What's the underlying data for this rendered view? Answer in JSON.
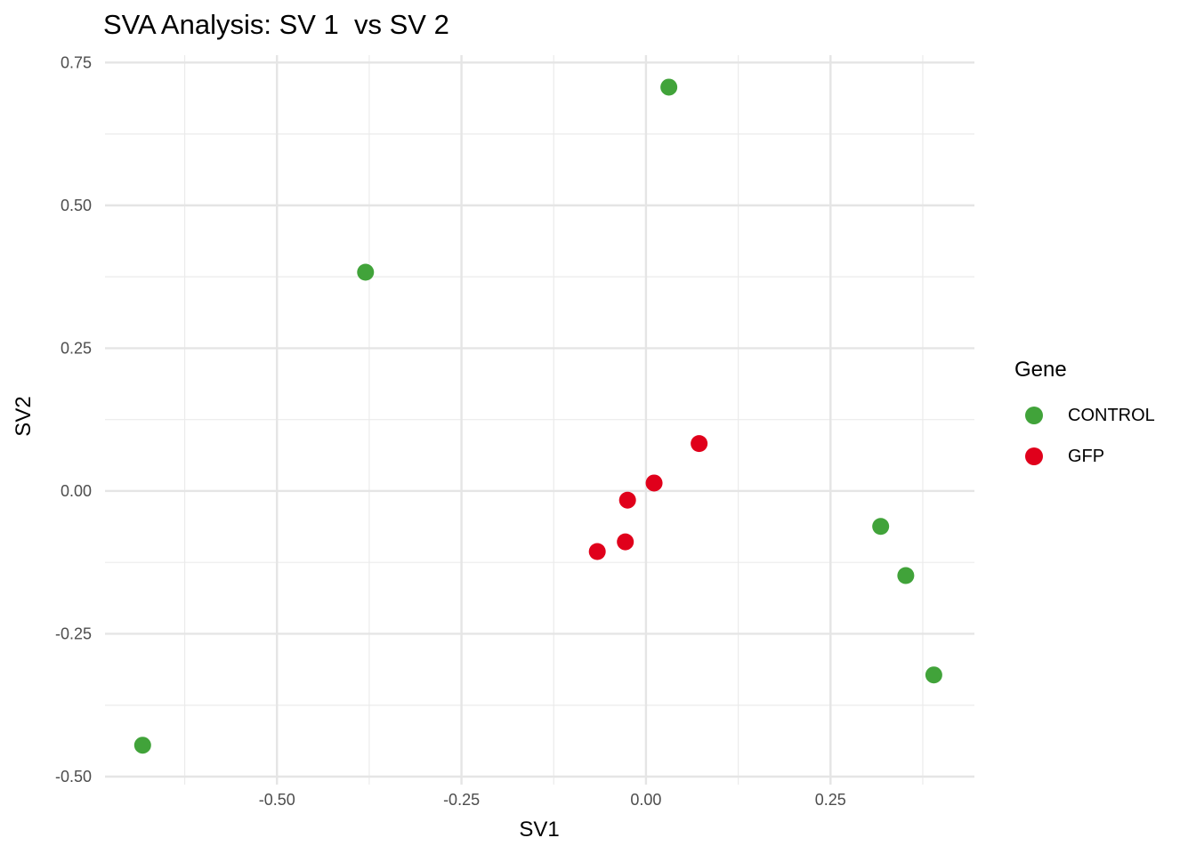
{
  "chart_data": {
    "type": "scatter",
    "title": "SVA Analysis: SV 1  vs SV 2",
    "xlabel": "SV1",
    "ylabel": "SV2",
    "xlim": [
      -0.733,
      0.445
    ],
    "ylim": [
      -0.514,
      0.763
    ],
    "x_ticks": [
      -0.5,
      -0.25,
      0.0,
      0.25
    ],
    "x_tick_labels": [
      "-0.50",
      "-0.25",
      "0.00",
      "0.25"
    ],
    "y_ticks": [
      -0.5,
      -0.25,
      0.0,
      0.25,
      0.5,
      0.75
    ],
    "y_tick_labels": [
      "-0.50",
      "-0.25",
      "0.00",
      "0.25",
      "0.50",
      "0.75"
    ],
    "grid": true,
    "legend": {
      "title": "Gene",
      "placement": "right"
    },
    "series": [
      {
        "name": "CONTROL",
        "color": "#41A33A",
        "points": [
          [
            0.031,
            0.707
          ],
          [
            -0.38,
            0.383
          ],
          [
            0.318,
            -0.062
          ],
          [
            0.352,
            -0.148
          ],
          [
            0.39,
            -0.322
          ],
          [
            -0.682,
            -0.445
          ]
        ]
      },
      {
        "name": "GFP",
        "color": "#E0001B",
        "points": [
          [
            0.072,
            0.083
          ],
          [
            0.011,
            0.014
          ],
          [
            -0.025,
            -0.016
          ],
          [
            -0.028,
            -0.089
          ],
          [
            -0.066,
            -0.106
          ]
        ]
      }
    ]
  }
}
